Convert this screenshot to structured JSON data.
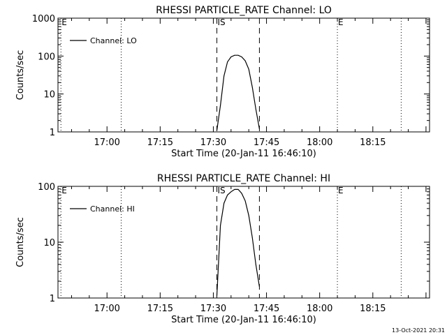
{
  "chart_data": [
    {
      "type": "line",
      "title": "RHESSI PARTICLE_RATE Channel: LO",
      "xlabel": "Start Time (20-Jan-11 16:46:10)",
      "ylabel": "Counts/sec",
      "y_scale": "log",
      "ylim": [
        1,
        1000
      ],
      "y_ticks": [
        1,
        10,
        100,
        1000
      ],
      "y_tick_labels": [
        "1",
        "10",
        "100",
        "1000"
      ],
      "x_ticks": [
        "17:00",
        "17:15",
        "17:30",
        "17:45",
        "18:00",
        "18:15"
      ],
      "grid": false,
      "legend": {
        "position": "top-left",
        "entries": [
          "Channel: LO"
        ]
      },
      "markers": [
        {
          "label": "E",
          "time": "16:47",
          "style": "dotted"
        },
        {
          "label": "",
          "time": "17:04",
          "style": "dotted"
        },
        {
          "label": "IS",
          "time": "17:31",
          "style": "dashed"
        },
        {
          "label": "",
          "time": "17:43",
          "style": "dashed"
        },
        {
          "label": "E",
          "time": "18:05",
          "style": "dotted"
        },
        {
          "label": "",
          "time": "18:23",
          "style": "dotted"
        }
      ],
      "series": [
        {
          "name": "Channel: LO",
          "x": [
            "17:31",
            "17:32",
            "17:33",
            "17:34",
            "17:35",
            "17:36",
            "17:37",
            "17:38",
            "17:39",
            "17:40",
            "17:41",
            "17:42",
            "17:43"
          ],
          "values": [
            1.1,
            5,
            30,
            70,
            95,
            105,
            105,
            95,
            75,
            45,
            15,
            4,
            1.2
          ]
        }
      ]
    },
    {
      "type": "line",
      "title": "RHESSI PARTICLE_RATE Channel: HI",
      "xlabel": "Start Time (20-Jan-11 16:46:10)",
      "ylabel": "Counts/sec",
      "y_scale": "log",
      "ylim": [
        1,
        100
      ],
      "y_ticks": [
        1,
        10,
        100
      ],
      "y_tick_labels": [
        "1",
        "10",
        "100"
      ],
      "x_ticks": [
        "17:00",
        "17:15",
        "17:30",
        "17:45",
        "18:00",
        "18:15"
      ],
      "grid": false,
      "legend": {
        "position": "top-left",
        "entries": [
          "Channel: HI"
        ]
      },
      "markers": [
        {
          "label": "E",
          "time": "16:47",
          "style": "dotted"
        },
        {
          "label": "",
          "time": "17:04",
          "style": "dotted"
        },
        {
          "label": "IS",
          "time": "17:31",
          "style": "dashed"
        },
        {
          "label": "",
          "time": "17:43",
          "style": "dashed"
        },
        {
          "label": "E",
          "time": "18:05",
          "style": "dotted"
        },
        {
          "label": "",
          "time": "18:23",
          "style": "dotted"
        }
      ],
      "series": [
        {
          "name": "Channel: HI",
          "x": [
            "17:31",
            "17:32",
            "17:33",
            "17:34",
            "17:35",
            "17:36",
            "17:37",
            "17:38",
            "17:39",
            "17:40",
            "17:41",
            "17:42",
            "17:43"
          ],
          "values": [
            1.1,
            20,
            50,
            70,
            80,
            88,
            88,
            75,
            55,
            30,
            12,
            4,
            1.6
          ]
        }
      ]
    }
  ],
  "footer": {
    "timestamp": "13-Oct-2021 20:31"
  }
}
